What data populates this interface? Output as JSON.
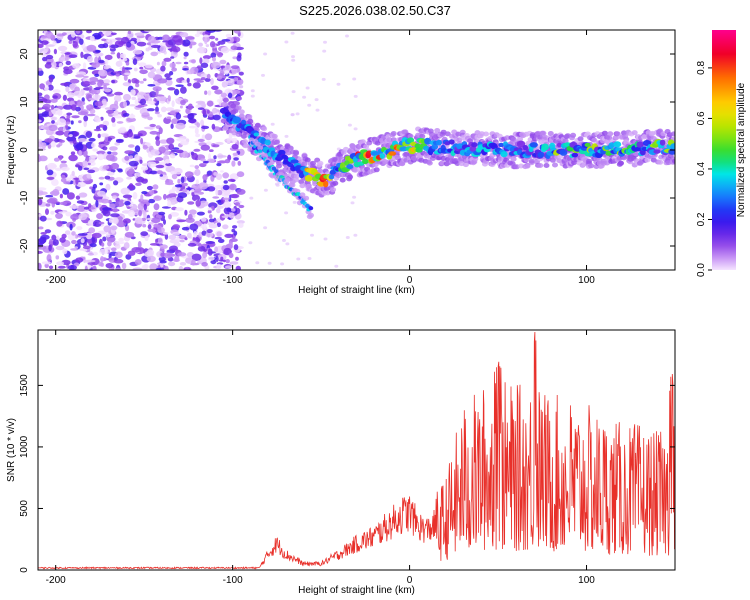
{
  "title": "S225.2026.038.02.50.C37",
  "chart_data": [
    {
      "type": "heatmap",
      "name": "spectrogram",
      "xlabel": "Height of straight line (km)",
      "ylabel": "Frequency (Hz)",
      "xlim": [
        -210,
        150
      ],
      "ylim": [
        -25,
        25
      ],
      "x_ticks": [
        -200,
        -100,
        0,
        100
      ],
      "y_ticks": [
        -20,
        -10,
        0,
        10,
        20
      ],
      "colorbar": {
        "label": "Normalized spectral amplitude",
        "range": [
          0,
          0.95
        ],
        "ticks": [
          0.0,
          0.2,
          0.4,
          0.6,
          0.8
        ]
      },
      "ridge": {
        "description_points_x": [
          -105,
          -95,
          -85,
          -75,
          -65,
          -55,
          -50,
          -45,
          -40,
          -30,
          -20,
          -10,
          0,
          20,
          50,
          80,
          110,
          150
        ],
        "description_points_y": [
          8,
          5,
          2,
          -1,
          -3.5,
          -5,
          -6,
          -6,
          -3.5,
          -2,
          -1,
          0,
          1,
          0.5,
          0,
          0,
          0,
          0.8
        ]
      },
      "branch": {
        "x": [
          -90,
          -80,
          -70,
          -62,
          -55
        ],
        "y": [
          2,
          -3,
          -7,
          -10,
          -13
        ]
      },
      "noise_region_x": [
        -210,
        -95
      ]
    },
    {
      "type": "line",
      "name": "snr",
      "xlabel": "Height of straight line (km)",
      "ylabel": "SNR (10 * v/v)",
      "xlim": [
        -210,
        150
      ],
      "ylim": [
        0,
        1950
      ],
      "x_ticks": [
        -200,
        -100,
        0,
        100
      ],
      "y_ticks": [
        0,
        500,
        1000,
        1500
      ],
      "series": [
        {
          "name": "SNR",
          "color": "#e8302a",
          "envelope_x": [
            -210,
            -85,
            -80,
            -75,
            -70,
            -60,
            -50,
            -40,
            -30,
            -20,
            -10,
            -5,
            0,
            5,
            10,
            20,
            30,
            40,
            50,
            60,
            70,
            80,
            90,
            100,
            110,
            120,
            130,
            140,
            150
          ],
          "envelope_y": [
            20,
            20,
            150,
            250,
            150,
            60,
            60,
            150,
            250,
            320,
            450,
            520,
            550,
            420,
            380,
            500,
            900,
            1000,
            1050,
            1000,
            1050,
            950,
            950,
            900,
            850,
            800,
            800,
            750,
            800
          ]
        }
      ]
    }
  ]
}
